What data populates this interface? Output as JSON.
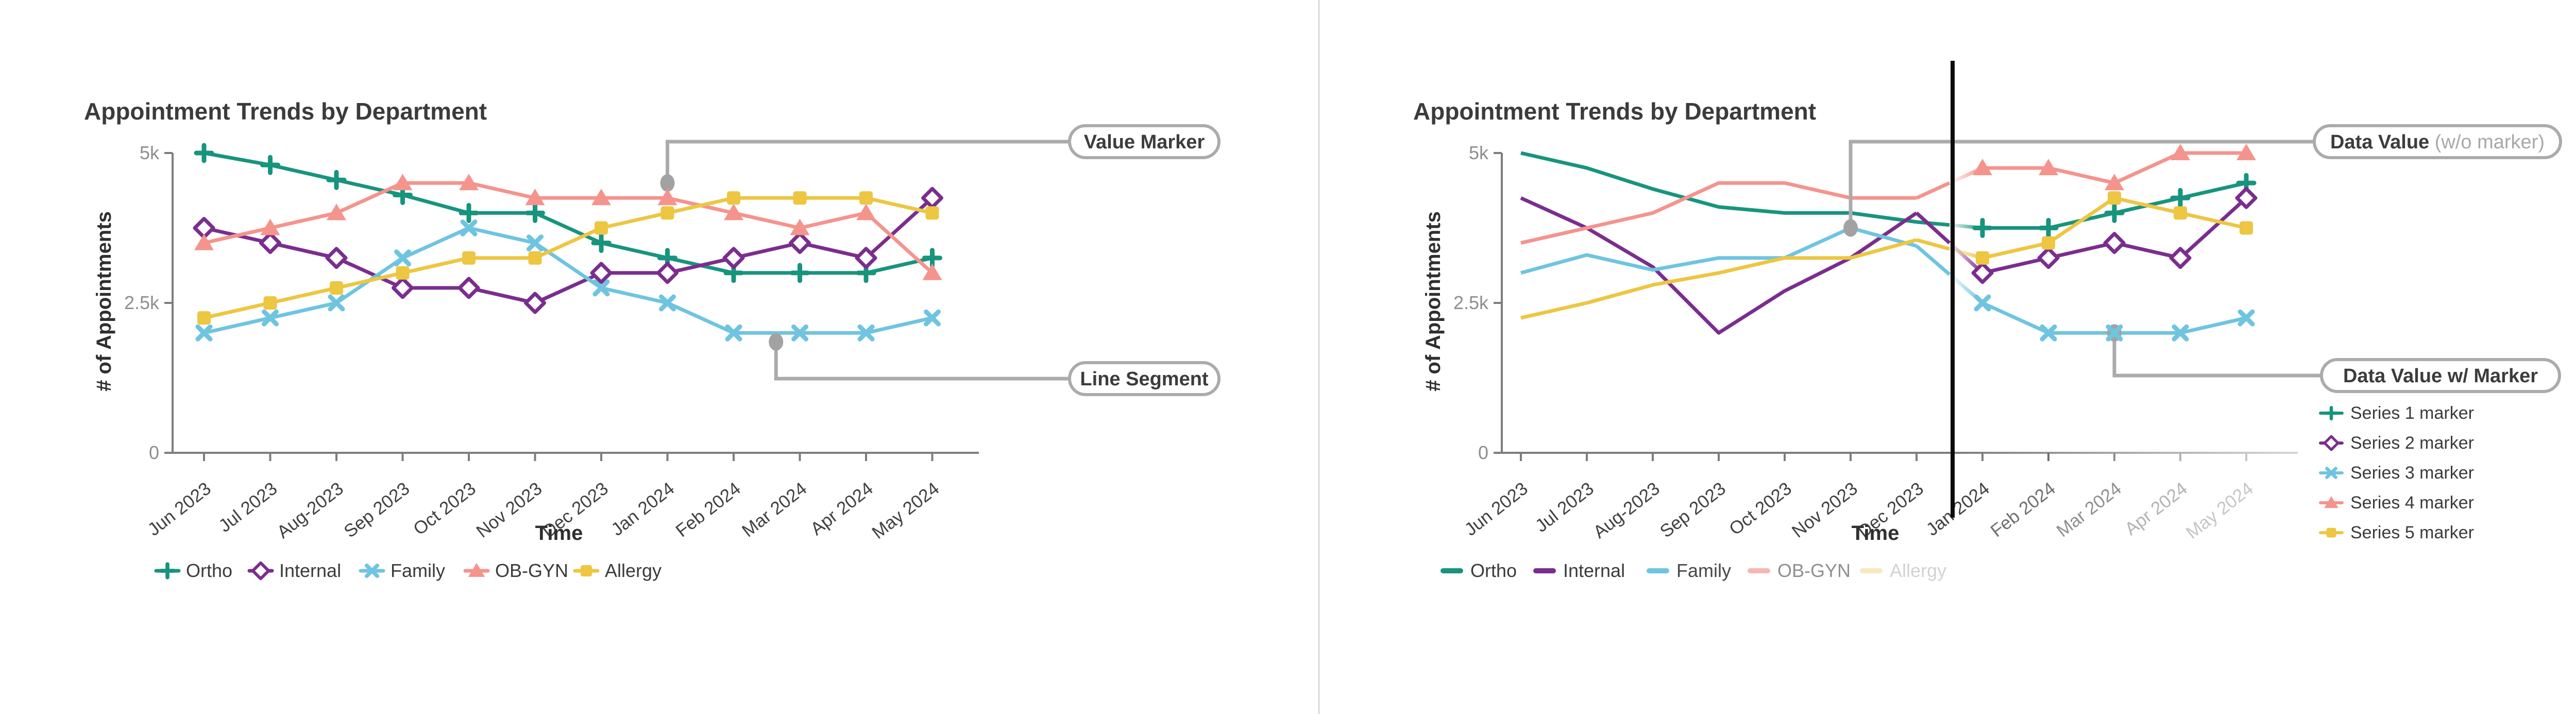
{
  "page": {
    "background": "#ffffff",
    "panel_divider_color": "#d9d9d9"
  },
  "annotation_style": {
    "line_color": "#ababab",
    "dot_color": "#a2a2a2",
    "pill_border": "#ababab",
    "pill_fill": "#ffffff",
    "text_color": "#3c3c3c",
    "muted_text_color": "#a8a8a8"
  },
  "axis_style": {
    "axis_color": "#7d7d7d",
    "ytick_label_color": "#8e8e8e",
    "xtick_label_color": "#414141",
    "faded_axis_color": "#d6d6d6"
  },
  "chart_data": [
    {
      "type": "line",
      "title": "Appointment Trends by Department",
      "xlabel": "Time",
      "ylabel": "# of Appointments",
      "categories": [
        "Jun 2023",
        "Jul 2023",
        "Aug-2023",
        "Sep 2023",
        "Oct 2023",
        "Nov 2023",
        "Dec 2023",
        "Jan 2024",
        "Feb 2024",
        "Mar 2024",
        "Apr 2024",
        "May 2024"
      ],
      "ylim": [
        0,
        5000
      ],
      "y_ticks": [
        {
          "value": 0,
          "label": "0"
        },
        {
          "value": 2500,
          "label": "2.5k"
        },
        {
          "value": 5000,
          "label": "5k"
        }
      ],
      "grid": false,
      "legend_position": "bottom",
      "series": [
        {
          "name": "Ortho",
          "color": "#17947e",
          "marker": "plus",
          "values": [
            5000,
            4800,
            4550,
            4300,
            4000,
            4000,
            3500,
            3250,
            3000,
            3000,
            3000,
            3250
          ]
        },
        {
          "name": "Internal",
          "color": "#7b2d8e",
          "marker": "diamond",
          "values": [
            3750,
            3500,
            3250,
            2750,
            2750,
            2500,
            3000,
            3000,
            3250,
            3500,
            3250,
            4250
          ]
        },
        {
          "name": "Family",
          "color": "#6fc4e0",
          "marker": "x",
          "values": [
            2000,
            2250,
            2500,
            3250,
            3750,
            3500,
            2750,
            2500,
            2000,
            2000,
            2000,
            2250
          ]
        },
        {
          "name": "OB-GYN",
          "color": "#f5938d",
          "marker": "triangle",
          "values": [
            3500,
            3750,
            4000,
            4500,
            4500,
            4250,
            4250,
            4250,
            4000,
            3750,
            4000,
            3000
          ]
        },
        {
          "name": "Allergy",
          "color": "#edc642",
          "marker": "square",
          "values": [
            2250,
            2500,
            2750,
            3000,
            3250,
            3250,
            3750,
            4000,
            4250,
            4250,
            4250,
            4000
          ]
        }
      ],
      "bottom_legend": {
        "style": "marker",
        "items": [
          {
            "label": "Ortho",
            "color": "#17947e",
            "text_color": "#3b3b3b"
          },
          {
            "label": "Internal",
            "color": "#7b2d8e",
            "text_color": "#3b3b3b"
          },
          {
            "label": "Family",
            "color": "#6fc4e0",
            "text_color": "#3b3b3b"
          },
          {
            "label": "OB-GYN",
            "color": "#f5938d",
            "text_color": "#3b3b3b"
          },
          {
            "label": "Allergy",
            "color": "#edc642",
            "text_color": "#3b3b3b"
          }
        ]
      },
      "annotations": [
        {
          "label": "Value Marker",
          "note": "",
          "x_index": 7,
          "value": 4500,
          "direction": "up"
        },
        {
          "label": "Line Segment",
          "note": "",
          "x_index": 8.64,
          "value": 1850,
          "direction": "down"
        }
      ]
    },
    {
      "type": "line",
      "title": "Appointment Trends by Department",
      "xlabel": "Time",
      "ylabel": "# of Appointments",
      "categories": [
        "Jun 2023",
        "Jul 2023",
        "Aug-2023",
        "Sep 2023",
        "Oct 2023",
        "Nov 2023",
        "Dec 2023",
        "Jan 2024",
        "Feb 2024",
        "Mar 2024",
        "Apr 2024",
        "May 2024"
      ],
      "ylim": [
        0,
        5000
      ],
      "y_ticks": [
        {
          "value": 0,
          "label": "0"
        },
        {
          "value": 2500,
          "label": "2.5k"
        },
        {
          "value": 5000,
          "label": "5k"
        }
      ],
      "grid": false,
      "legend_position": "bottom",
      "marker_from_index": 7,
      "fade_segment": [
        6,
        7
      ],
      "divider": {
        "color": "#0b0b0b",
        "between": [
          6,
          7
        ]
      },
      "x_label_colors": [
        "#414141",
        "#414141",
        "#414141",
        "#414141",
        "#414141",
        "#414141",
        "#414141",
        "#414141",
        "#6f6f6f",
        "#8f8f8f",
        "#b3b3b3",
        "#c6c6c6"
      ],
      "series": [
        {
          "name": "Ortho",
          "color": "#17947e",
          "marker": "plus",
          "values": [
            5000,
            4750,
            4400,
            4100,
            4000,
            4000,
            3850,
            3750,
            3750,
            4000,
            4250,
            4500
          ]
        },
        {
          "name": "Internal",
          "color": "#7b2d8e",
          "marker": "diamond",
          "values": [
            4250,
            3750,
            3100,
            2000,
            2700,
            3250,
            4000,
            3000,
            3250,
            3500,
            3250,
            4250
          ]
        },
        {
          "name": "Family",
          "color": "#6fc4e0",
          "marker": "x",
          "values": [
            3000,
            3300,
            3050,
            3250,
            3250,
            3750,
            3450,
            2500,
            2000,
            2000,
            2000,
            2250
          ]
        },
        {
          "name": "OB-GYN",
          "color": "#f5938d",
          "marker": "triangle",
          "values": [
            3500,
            3750,
            4000,
            4500,
            4500,
            4250,
            4250,
            4750,
            4750,
            4500,
            5000,
            5000
          ]
        },
        {
          "name": "Allergy",
          "color": "#edc642",
          "marker": "square",
          "values": [
            2250,
            2500,
            2800,
            3000,
            3250,
            3250,
            3550,
            3250,
            3500,
            4250,
            4000,
            3750
          ]
        }
      ],
      "bottom_legend": {
        "style": "line",
        "items": [
          {
            "label": "Ortho",
            "color": "#17947e",
            "text_color": "#3b3b3b"
          },
          {
            "label": "Internal",
            "color": "#7b2d8e",
            "text_color": "#3b3b3b"
          },
          {
            "label": "Family",
            "color": "#6fc4e0",
            "text_color": "#474747"
          },
          {
            "label": "OB-GYN",
            "color": "#f6b6b1",
            "text_color": "#8f8f8f"
          },
          {
            "label": "Allergy",
            "color": "#f6e9c0",
            "text_color": "#d2d2d2"
          }
        ]
      },
      "side_legend": [
        {
          "label": "Series 1 marker",
          "color": "#17947e",
          "marker": "plus"
        },
        {
          "label": "Series 2 marker",
          "color": "#7b2d8e",
          "marker": "diamond"
        },
        {
          "label": "Series 3 marker",
          "color": "#6fc4e0",
          "marker": "x"
        },
        {
          "label": "Series 4 marker",
          "color": "#f5938d",
          "marker": "triangle"
        },
        {
          "label": "Series 5 marker",
          "color": "#edc642",
          "marker": "square"
        }
      ],
      "annotations": [
        {
          "label": "Data Value",
          "note": "(w/o marker)",
          "x_index": 5,
          "value": 3750,
          "direction": "up"
        },
        {
          "label": "Data Value w/ Marker",
          "note": "",
          "x_index": 9,
          "value": 2000,
          "direction": "down"
        }
      ]
    }
  ]
}
